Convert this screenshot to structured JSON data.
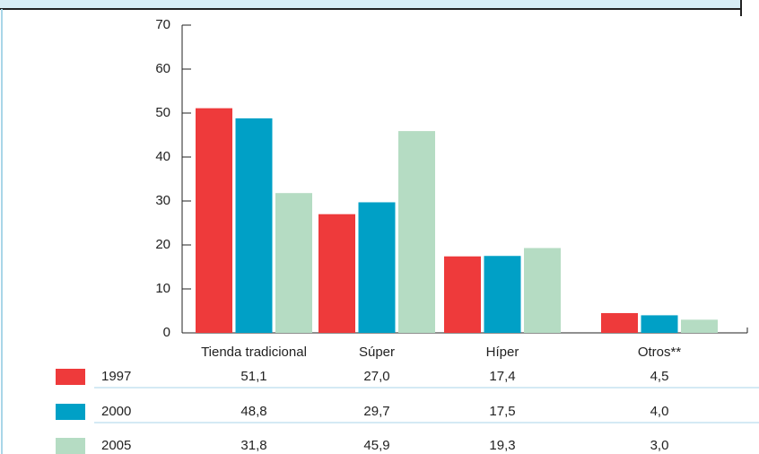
{
  "chart_data": {
    "type": "bar",
    "categories": [
      "Tienda tradicional",
      "Súper",
      "Híper",
      "Otros**"
    ],
    "series": [
      {
        "name": "1997",
        "color": "#ee3a3b",
        "values": [
          51.1,
          27.0,
          17.4,
          4.5
        ],
        "value_labels": [
          "51,1",
          "27,0",
          "17,4",
          "4,5"
        ]
      },
      {
        "name": "2000",
        "color": "#00a0c6",
        "values": [
          48.8,
          29.7,
          17.5,
          4.0
        ],
        "value_labels": [
          "48,8",
          "29,7",
          "17,5",
          "4,0"
        ]
      },
      {
        "name": "2005",
        "color": "#b5dcc3",
        "values": [
          31.8,
          45.9,
          19.3,
          3.0
        ],
        "value_labels": [
          "31,8",
          "45,9",
          "19,3",
          "3,0"
        ]
      }
    ],
    "ylim": [
      0,
      70
    ],
    "yticks": [
      0,
      10,
      20,
      30,
      40,
      50,
      60,
      70
    ]
  }
}
